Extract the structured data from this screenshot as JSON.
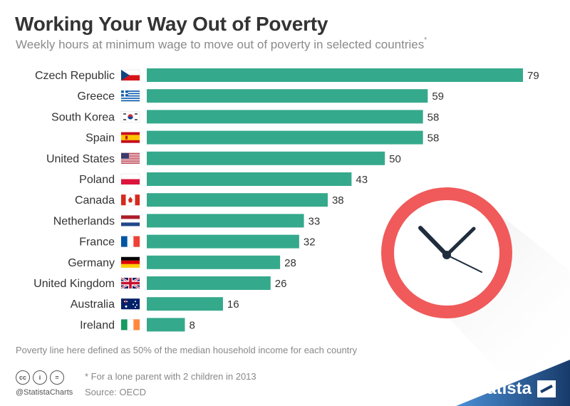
{
  "header": {
    "title": "Working Your Way Out of Poverty",
    "subtitle": "Weekly hours at minimum wage to move out of poverty in selected countries",
    "subtitle_mark": "*"
  },
  "chart_data": {
    "type": "bar",
    "orientation": "horizontal",
    "title": "Working Your Way Out of Poverty",
    "subtitle": "Weekly hours at minimum wage to move out of poverty in selected countries*",
    "categories": [
      "Czech Republic",
      "Greece",
      "South Korea",
      "Spain",
      "United States",
      "Poland",
      "Canada",
      "Netherlands",
      "France",
      "Germany",
      "United Kingdom",
      "Australia",
      "Ireland"
    ],
    "values": [
      79,
      59,
      58,
      58,
      50,
      43,
      38,
      33,
      32,
      28,
      26,
      16,
      8
    ],
    "xlim": [
      0,
      79
    ],
    "bar_color": "#35a98c",
    "grid": false,
    "data_labels": true
  },
  "flag_icons": [
    "czech-flag-icon",
    "greece-flag-icon",
    "south-korea-flag-icon",
    "spain-flag-icon",
    "us-flag-icon",
    "poland-flag-icon",
    "canada-flag-icon",
    "netherlands-flag-icon",
    "france-flag-icon",
    "germany-flag-icon",
    "uk-flag-icon",
    "australia-flag-icon",
    "ireland-flag-icon"
  ],
  "footer": {
    "note": "Poverty line here defined as 50% of the median household income for each country",
    "footnote": "* For a lone parent with 2 children in 2013",
    "source": "Source: OECD",
    "handle": "@StatistaCharts",
    "brand": "statista",
    "license_icons": [
      "cc",
      "i",
      "="
    ]
  },
  "colors": {
    "accent": "#35a98c",
    "clock_ring": "#f05a5a",
    "brand_band": "#183b6a"
  }
}
